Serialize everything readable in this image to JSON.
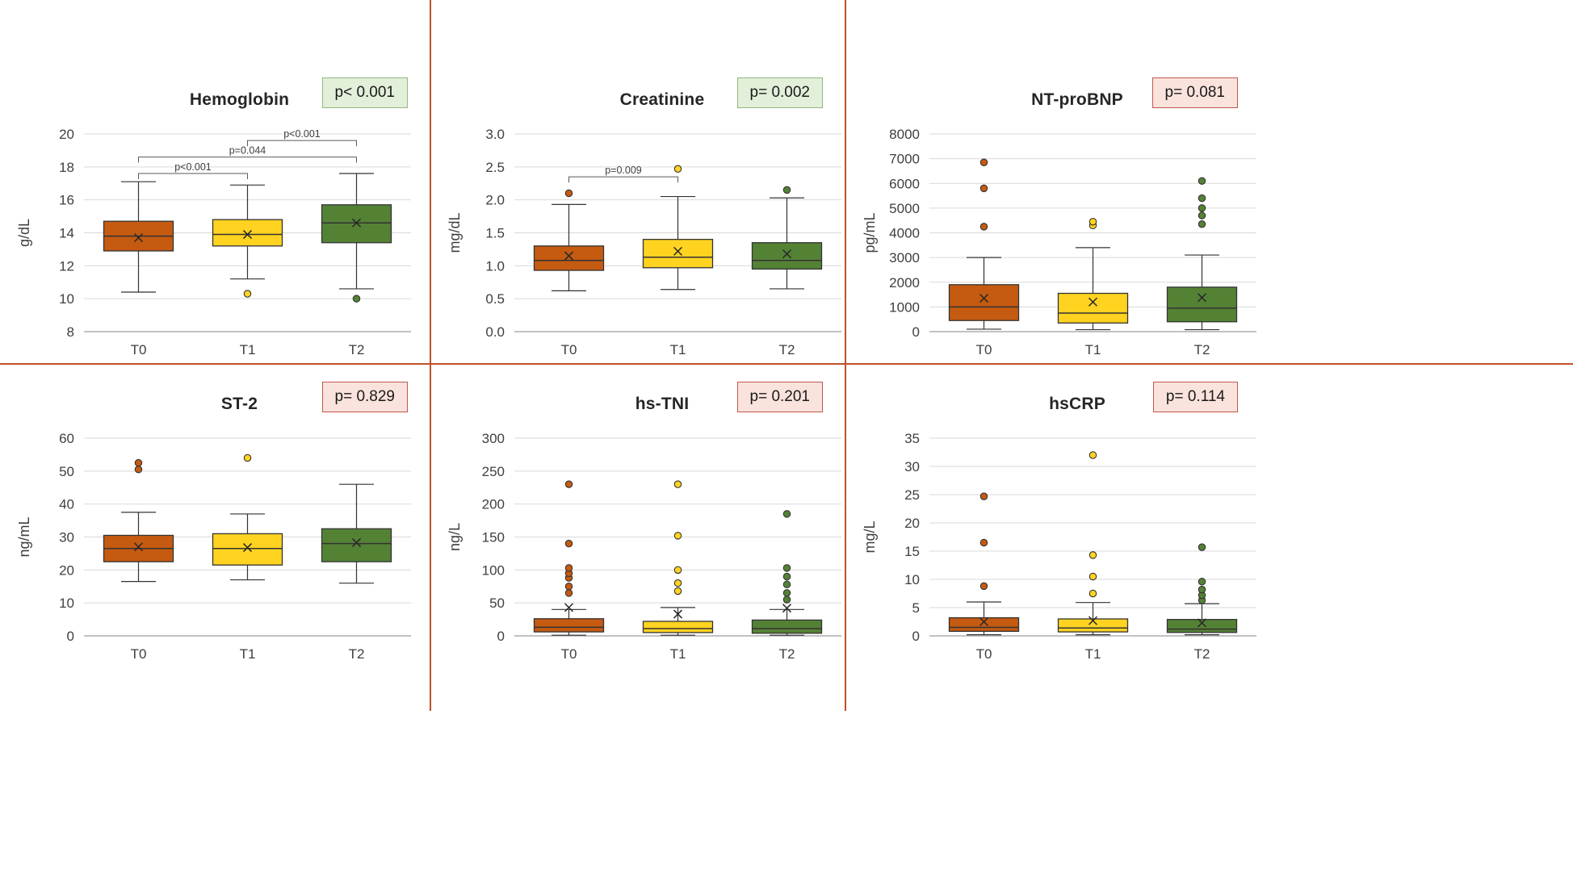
{
  "figure": {
    "categories": [
      "T0",
      "T1",
      "T2"
    ]
  },
  "colors": {
    "t0_fill": "#C55A11",
    "t1_fill": "#FFD320",
    "t2_fill": "#548235",
    "box_stroke": "#333333",
    "mean_marker": "#262626",
    "gridline": "#D9D9D9",
    "axis": "#9e9e9e",
    "bracket": "#595959",
    "divider": "#BE5127",
    "sig_bg": "#E2EFD9",
    "sig_border": "#94B87C",
    "nonsig_bg": "#F9E3DC",
    "nonsig_border": "#C0584C"
  },
  "chart_data": [
    {
      "type": "box",
      "title": "Hemoglobin",
      "p_label": "p< 0.001",
      "significant": true,
      "ylabel": "g/dL",
      "ylim": [
        8,
        20
      ],
      "ytick_step": 2,
      "ytick_decimals": 0,
      "categories": [
        "T0",
        "T1",
        "T2"
      ],
      "series": [
        {
          "name": "T0",
          "whisker_low": 10.4,
          "q1": 12.9,
          "median": 13.8,
          "q3": 14.7,
          "whisker_high": 17.1,
          "mean": 13.7,
          "outliers": []
        },
        {
          "name": "T1",
          "whisker_low": 11.2,
          "q1": 13.2,
          "median": 13.9,
          "q3": 14.8,
          "whisker_high": 16.9,
          "mean": 13.9,
          "outliers": [
            10.3
          ]
        },
        {
          "name": "T2",
          "whisker_low": 10.6,
          "q1": 13.4,
          "median": 14.6,
          "q3": 15.7,
          "whisker_high": 17.6,
          "mean": 14.6,
          "outliers": [
            10.0
          ]
        }
      ],
      "brackets": [
        {
          "from": 0,
          "to": 1,
          "y": 17.6,
          "label": "p<0.001"
        },
        {
          "from": 0,
          "to": 2,
          "y": 18.6,
          "label": "p=0.044"
        },
        {
          "from": 1,
          "to": 2,
          "y": 19.6,
          "label": "p<0.001"
        }
      ]
    },
    {
      "type": "box",
      "title": "Creatinine",
      "p_label": "p= 0.002",
      "significant": true,
      "ylabel": "mg/dL",
      "ylim": [
        0,
        3
      ],
      "ytick_step": 0.5,
      "ytick_decimals": 1,
      "categories": [
        "T0",
        "T1",
        "T2"
      ],
      "series": [
        {
          "name": "T0",
          "whisker_low": 0.62,
          "q1": 0.93,
          "median": 1.08,
          "q3": 1.3,
          "whisker_high": 1.93,
          "mean": 1.15,
          "outliers": [
            2.1
          ]
        },
        {
          "name": "T1",
          "whisker_low": 0.64,
          "q1": 0.97,
          "median": 1.13,
          "q3": 1.4,
          "whisker_high": 2.05,
          "mean": 1.22,
          "outliers": [
            2.47
          ]
        },
        {
          "name": "T2",
          "whisker_low": 0.65,
          "q1": 0.95,
          "median": 1.08,
          "q3": 1.35,
          "whisker_high": 2.03,
          "mean": 1.18,
          "outliers": [
            2.15
          ]
        }
      ],
      "brackets": [
        {
          "from": 0,
          "to": 1,
          "y": 2.35,
          "label": "p=0.009"
        }
      ]
    },
    {
      "type": "box",
      "title": "NT-proBNP",
      "p_label": "p= 0.081",
      "significant": false,
      "ylabel": "pg/mL",
      "ylim": [
        0,
        8000
      ],
      "ytick_step": 1000,
      "ytick_decimals": 0,
      "categories": [
        "T0",
        "T1",
        "T2"
      ],
      "series": [
        {
          "name": "T0",
          "whisker_low": 100,
          "q1": 450,
          "median": 1000,
          "q3": 1900,
          "whisker_high": 3000,
          "mean": 1350,
          "outliers": [
            4250,
            5800,
            6850
          ]
        },
        {
          "name": "T1",
          "whisker_low": 80,
          "q1": 350,
          "median": 750,
          "q3": 1550,
          "whisker_high": 3400,
          "mean": 1200,
          "outliers": [
            4300,
            4450
          ]
        },
        {
          "name": "T2",
          "whisker_low": 80,
          "q1": 400,
          "median": 950,
          "q3": 1800,
          "whisker_high": 3100,
          "mean": 1380,
          "outliers": [
            4350,
            4700,
            5000,
            5400,
            6100
          ]
        }
      ],
      "brackets": []
    },
    {
      "type": "box",
      "title": "ST-2",
      "p_label": "p= 0.829",
      "significant": false,
      "ylabel": "ng/mL",
      "ylim": [
        0,
        60
      ],
      "ytick_step": 10,
      "ytick_decimals": 0,
      "categories": [
        "T0",
        "T1",
        "T2"
      ],
      "series": [
        {
          "name": "T0",
          "whisker_low": 16.5,
          "q1": 22.5,
          "median": 26.5,
          "q3": 30.5,
          "whisker_high": 37.5,
          "mean": 27.0,
          "outliers": [
            50.5,
            52.5
          ]
        },
        {
          "name": "T1",
          "whisker_low": 17.0,
          "q1": 21.5,
          "median": 26.5,
          "q3": 31.0,
          "whisker_high": 37.0,
          "mean": 26.8,
          "outliers": [
            54.0
          ]
        },
        {
          "name": "T2",
          "whisker_low": 16.0,
          "q1": 22.5,
          "median": 28.0,
          "q3": 32.5,
          "whisker_high": 46.0,
          "mean": 28.3,
          "outliers": []
        }
      ],
      "brackets": []
    },
    {
      "type": "box",
      "title": "hs-TNI",
      "p_label": "p= 0.201",
      "significant": false,
      "ylabel": "ng/L",
      "ylim": [
        0,
        300
      ],
      "ytick_step": 50,
      "ytick_decimals": 0,
      "categories": [
        "T0",
        "T1",
        "T2"
      ],
      "series": [
        {
          "name": "T0",
          "whisker_low": 1,
          "q1": 6,
          "median": 13,
          "q3": 26,
          "whisker_high": 40,
          "mean": 43,
          "outliers": [
            65,
            75,
            88,
            95,
            103,
            140,
            230
          ]
        },
        {
          "name": "T1",
          "whisker_low": 1,
          "q1": 5,
          "median": 11,
          "q3": 22,
          "whisker_high": 43,
          "mean": 33,
          "outliers": [
            68,
            80,
            100,
            152,
            230
          ]
        },
        {
          "name": "T2",
          "whisker_low": 1,
          "q1": 4,
          "median": 11,
          "q3": 24,
          "whisker_high": 40,
          "mean": 42,
          "outliers": [
            55,
            65,
            78,
            90,
            103,
            185
          ]
        }
      ],
      "brackets": []
    },
    {
      "type": "box",
      "title": "hsCRP",
      "p_label": "p= 0.114",
      "significant": false,
      "ylabel": "mg/L",
      "ylim": [
        0,
        35
      ],
      "ytick_step": 5,
      "ytick_decimals": 0,
      "categories": [
        "T0",
        "T1",
        "T2"
      ],
      "series": [
        {
          "name": "T0",
          "whisker_low": 0.2,
          "q1": 0.8,
          "median": 1.5,
          "q3": 3.2,
          "whisker_high": 6.0,
          "mean": 2.5,
          "outliers": [
            8.8,
            16.5,
            24.7
          ]
        },
        {
          "name": "T1",
          "whisker_low": 0.2,
          "q1": 0.7,
          "median": 1.4,
          "q3": 3.0,
          "whisker_high": 5.9,
          "mean": 2.7,
          "outliers": [
            7.5,
            10.5,
            14.3,
            32.0
          ]
        },
        {
          "name": "T2",
          "whisker_low": 0.2,
          "q1": 0.6,
          "median": 1.2,
          "q3": 2.9,
          "whisker_high": 5.7,
          "mean": 2.3,
          "outliers": [
            6.3,
            7.2,
            8.2,
            9.6,
            15.7
          ]
        }
      ],
      "brackets": []
    }
  ]
}
